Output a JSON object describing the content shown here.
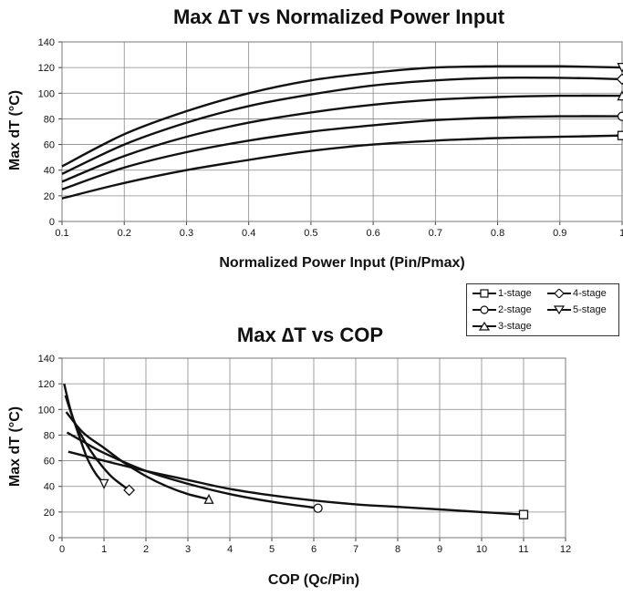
{
  "chart_data": [
    {
      "type": "line",
      "title": "Max ∆T vs Normalized Power Input",
      "xlabel": "Normalized Power Input (Pin/Pmax)",
      "ylabel": "Max dT (°C)",
      "xlim": [
        0.1,
        1
      ],
      "ylim": [
        0,
        140
      ],
      "x_ticks": [
        "0.1",
        "0.2",
        "0.3",
        "0.4",
        "0.5",
        "0.6",
        "0.7",
        "0.8",
        "0.9",
        "1"
      ],
      "y_ticks": [
        "0",
        "20",
        "40",
        "60",
        "80",
        "100",
        "120",
        "140"
      ],
      "grid": true,
      "x": [
        0.1,
        0.2,
        0.3,
        0.4,
        0.5,
        0.6,
        0.7,
        0.8,
        0.9,
        1.0
      ],
      "series": [
        {
          "name": "1-stage",
          "marker": "square",
          "values": [
            18,
            30,
            40,
            48,
            55,
            60,
            63,
            65,
            66,
            67
          ]
        },
        {
          "name": "2-stage",
          "marker": "circle",
          "values": [
            25,
            42,
            54,
            63,
            70,
            75,
            79,
            81,
            82,
            82
          ]
        },
        {
          "name": "3-stage",
          "marker": "triangle-up",
          "values": [
            31,
            51,
            66,
            77,
            85,
            91,
            95,
            97,
            98,
            98
          ]
        },
        {
          "name": "4-stage",
          "marker": "diamond",
          "values": [
            37,
            60,
            77,
            90,
            99,
            106,
            110,
            112,
            112,
            111
          ]
        },
        {
          "name": "5-stage",
          "marker": "triangle-down",
          "values": [
            43,
            68,
            86,
            100,
            110,
            116,
            120,
            121,
            121,
            120
          ]
        }
      ]
    },
    {
      "type": "line",
      "title": "Max ∆T vs COP",
      "xlabel": "COP (Qc/Pin)",
      "ylabel": "Max dT (°C)",
      "xlim": [
        0,
        12
      ],
      "ylim": [
        0,
        140
      ],
      "x_ticks": [
        "0",
        "1",
        "2",
        "3",
        "4",
        "5",
        "6",
        "7",
        "8",
        "9",
        "10",
        "11",
        "12"
      ],
      "y_ticks": [
        "0",
        "20",
        "40",
        "60",
        "80",
        "100",
        "120",
        "140"
      ],
      "grid": true,
      "legend": {
        "position": "top-right",
        "entries": [
          "1-stage",
          "4-stage",
          "2-stage",
          "5-stage",
          "3-stage"
        ]
      },
      "series": [
        {
          "name": "1-stage",
          "marker": "square",
          "points": [
            [
              0.15,
              67
            ],
            [
              1.0,
              60
            ],
            [
              2.0,
              52
            ],
            [
              3.0,
              45
            ],
            [
              4.0,
              38
            ],
            [
              5.0,
              33
            ],
            [
              6.0,
              29
            ],
            [
              7.0,
              26
            ],
            [
              8.0,
              24
            ],
            [
              9.0,
              22
            ],
            [
              10.0,
              20
            ],
            [
              11.0,
              18
            ]
          ]
        },
        {
          "name": "2-stage",
          "marker": "circle",
          "points": [
            [
              0.12,
              82
            ],
            [
              0.5,
              75
            ],
            [
              1.0,
              66
            ],
            [
              2.0,
              52
            ],
            [
              3.0,
              42
            ],
            [
              4.0,
              34
            ],
            [
              5.0,
              28
            ],
            [
              6.1,
              23
            ]
          ]
        },
        {
          "name": "3-stage",
          "marker": "triangle-up",
          "points": [
            [
              0.1,
              98
            ],
            [
              0.5,
              82
            ],
            [
              1.0,
              70
            ],
            [
              1.5,
              58
            ],
            [
              2.0,
              48
            ],
            [
              2.5,
              40
            ],
            [
              3.0,
              34
            ],
            [
              3.5,
              30
            ]
          ]
        },
        {
          "name": "4-stage",
          "marker": "diamond",
          "points": [
            [
              0.08,
              111
            ],
            [
              0.3,
              90
            ],
            [
              0.6,
              72
            ],
            [
              0.9,
              58
            ],
            [
              1.2,
              47
            ],
            [
              1.6,
              37
            ]
          ]
        },
        {
          "name": "5-stage",
          "marker": "triangle-down",
          "points": [
            [
              0.05,
              120
            ],
            [
              0.2,
              100
            ],
            [
              0.4,
              80
            ],
            [
              0.6,
              62
            ],
            [
              0.8,
              50
            ],
            [
              1.0,
              42
            ]
          ]
        }
      ]
    }
  ]
}
